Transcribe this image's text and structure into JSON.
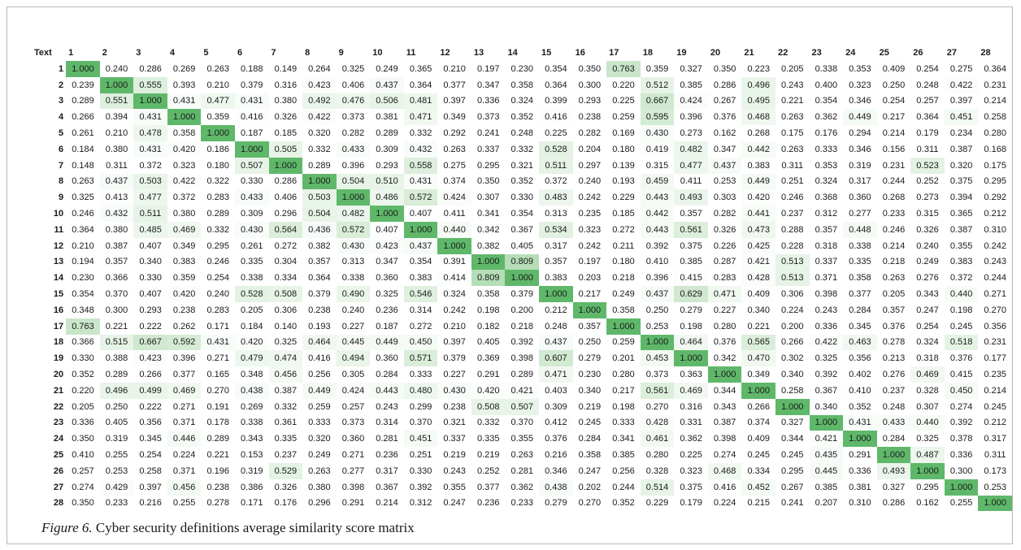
{
  "caption": {
    "label": "Figure 6.",
    "text": "Cyber security definitions average similarity score matrix"
  },
  "colors": {
    "scale_low": "#ffffff",
    "scale_mid": "#cfe8cf",
    "scale_high": "#5fb86a",
    "text": "#1a1a1a"
  },
  "chart_data": {
    "type": "heatmap",
    "corner_label": "Text",
    "x_labels": [
      "1",
      "2",
      "3",
      "4",
      "5",
      "6",
      "7",
      "8",
      "9",
      "10",
      "11",
      "12",
      "13",
      "14",
      "15",
      "16",
      "17",
      "18",
      "19",
      "20",
      "21",
      "22",
      "23",
      "24",
      "25",
      "26",
      "27",
      "28"
    ],
    "y_labels": [
      "1",
      "2",
      "3",
      "4",
      "5",
      "6",
      "7",
      "8",
      "9",
      "10",
      "11",
      "12",
      "13",
      "14",
      "15",
      "16",
      "17",
      "18",
      "19",
      "20",
      "21",
      "22",
      "23",
      "24",
      "25",
      "26",
      "27",
      "28"
    ],
    "cells": [
      [
        "1.000",
        "0.240",
        "0.286",
        "0.269",
        "0.263",
        "0.188",
        "0.149",
        "0.264",
        "0.325",
        "0.249",
        "0.365",
        "0.210",
        "0.197",
        "0.230",
        "0.354",
        "0.350",
        "0.763",
        "0.359",
        "0.327",
        "0.350",
        "0.223",
        "0.205",
        "0.338",
        "0.353",
        "0.409",
        "0.254",
        "0.275",
        "0.364"
      ],
      [
        "0.239",
        "1.000",
        "0.555",
        "0.393",
        "0.210",
        "0.379",
        "0.316",
        "0.423",
        "0.406",
        "0.437",
        "0.364",
        "0.377",
        "0.347",
        "0.358",
        "0.364",
        "0.300",
        "0.220",
        "0.512",
        "0.385",
        "0.286",
        "0.496",
        "0.243",
        "0.400",
        "0.323",
        "0.250",
        "0.248",
        "0.422",
        "0.231"
      ],
      [
        "0.289",
        "0.551",
        "1.000",
        "0.431",
        "0.477",
        "0.431",
        "0.380",
        "0.492",
        "0.476",
        "0.506",
        "0.481",
        "0.397",
        "0.336",
        "0.324",
        "0.399",
        "0.293",
        "0.225",
        "0.667",
        "0.424",
        "0.267",
        "0.495",
        "0.221",
        "0.354",
        "0.346",
        "0.254",
        "0.257",
        "0.397",
        "0.214"
      ],
      [
        "0.266",
        "0.394",
        "0.431",
        "1.000",
        "0.359",
        "0.416",
        "0.326",
        "0.422",
        "0.373",
        "0.381",
        "0.471",
        "0.349",
        "0.373",
        "0.352",
        "0.416",
        "0.238",
        "0.259",
        "0.595",
        "0.396",
        "0.376",
        "0.468",
        "0.263",
        "0.362",
        "0.449",
        "0.217",
        "0.364",
        "0.451",
        "0.258"
      ],
      [
        "0.261",
        "0.210",
        "0.478",
        "0.358",
        "1.000",
        "0.187",
        "0.185",
        "0.320",
        "0.282",
        "0.289",
        "0.332",
        "0.292",
        "0.241",
        "0.248",
        "0.225",
        "0.282",
        "0.169",
        "0.430",
        "0.273",
        "0.162",
        "0.268",
        "0.175",
        "0.176",
        "0.294",
        "0.214",
        "0.179",
        "0.234",
        "0.280"
      ],
      [
        "0.184",
        "0.380",
        "0.431",
        "0.420",
        "0.186",
        "1.000",
        "0.505",
        "0.332",
        "0.433",
        "0.309",
        "0.432",
        "0.263",
        "0.337",
        "0.332",
        "0.528",
        "0.204",
        "0.180",
        "0.419",
        "0.482",
        "0.347",
        "0.442",
        "0.263",
        "0.333",
        "0.346",
        "0.156",
        "0.311",
        "0.387",
        "0.168"
      ],
      [
        "0.148",
        "0.311",
        "0.372",
        "0.323",
        "0.180",
        "0.507",
        "1.000",
        "0.289",
        "0.396",
        "0.293",
        "0.558",
        "0.275",
        "0.295",
        "0.321",
        "0.511",
        "0.297",
        "0.139",
        "0.315",
        "0.477",
        "0.437",
        "0.383",
        "0.311",
        "0.353",
        "0.319",
        "0.231",
        "0.523",
        "0.320",
        "0.175"
      ],
      [
        "0.263",
        "0.437",
        "0.503",
        "0.422",
        "0.322",
        "0.330",
        "0.286",
        "1.000",
        "0.504",
        "0.510",
        "0.431",
        "0.374",
        "0.350",
        "0.352",
        "0.372",
        "0.240",
        "0.193",
        "0.459",
        "0.411",
        "0.253",
        "0.449",
        "0.251",
        "0.324",
        "0.317",
        "0.244",
        "0.252",
        "0.375",
        "0.295"
      ],
      [
        "0.325",
        "0.413",
        "0.477",
        "0.372",
        "0.283",
        "0.433",
        "0.406",
        "0.503",
        "1.000",
        "0.486",
        "0.572",
        "0.424",
        "0.307",
        "0.330",
        "0.483",
        "0.242",
        "0.229",
        "0.443",
        "0.493",
        "0.303",
        "0.420",
        "0.246",
        "0.368",
        "0.360",
        "0.268",
        "0.273",
        "0.394",
        "0.292"
      ],
      [
        "0.246",
        "0.432",
        "0.511",
        "0.380",
        "0.289",
        "0.309",
        "0.296",
        "0.504",
        "0.482",
        "1.000",
        "0.407",
        "0.411",
        "0.341",
        "0.354",
        "0.313",
        "0.235",
        "0.185",
        "0.442",
        "0.357",
        "0.282",
        "0.441",
        "0.237",
        "0.312",
        "0.277",
        "0.233",
        "0.315",
        "0.365",
        "0.212"
      ],
      [
        "0.364",
        "0.380",
        "0.485",
        "0.469",
        "0.332",
        "0.430",
        "0.564",
        "0.436",
        "0.572",
        "0.407",
        "1.000",
        "0.440",
        "0.342",
        "0.367",
        "0.534",
        "0.323",
        "0.272",
        "0.443",
        "0.561",
        "0.326",
        "0.473",
        "0.288",
        "0.357",
        "0.448",
        "0.246",
        "0.326",
        "0.387",
        "0.310"
      ],
      [
        "0.210",
        "0.387",
        "0.407",
        "0.349",
        "0.295",
        "0.261",
        "0.272",
        "0.382",
        "0.430",
        "0.423",
        "0.437",
        "1.000",
        "0.382",
        "0.405",
        "0.317",
        "0.242",
        "0.211",
        "0.392",
        "0.375",
        "0.226",
        "0.425",
        "0.228",
        "0.318",
        "0.338",
        "0.214",
        "0.240",
        "0.355",
        "0.242"
      ],
      [
        "0.194",
        "0.357",
        "0.340",
        "0.383",
        "0.246",
        "0.335",
        "0.304",
        "0.357",
        "0.313",
        "0.347",
        "0.354",
        "0.391",
        "1.000",
        "0.809",
        "0.357",
        "0.197",
        "0.180",
        "0.410",
        "0.385",
        "0.287",
        "0.421",
        "0.513",
        "0.337",
        "0.335",
        "0.218",
        "0.249",
        "0.383",
        "0.243"
      ],
      [
        "0.230",
        "0.366",
        "0.330",
        "0.359",
        "0.254",
        "0.338",
        "0.334",
        "0.364",
        "0.338",
        "0.360",
        "0.383",
        "0.414",
        "0.809",
        "1.000",
        "0.383",
        "0.203",
        "0.218",
        "0.396",
        "0.415",
        "0.283",
        "0.428",
        "0.513",
        "0.371",
        "0.358",
        "0.263",
        "0.276",
        "0.372",
        "0.244"
      ],
      [
        "0.354",
        "0.370",
        "0.407",
        "0.420",
        "0.240",
        "0.528",
        "0.508",
        "0.379",
        "0.490",
        "0.325",
        "0.546",
        "0.324",
        "0.358",
        "0.379",
        "1.000",
        "0.217",
        "0.249",
        "0.437",
        "0.629",
        "0.471",
        "0.409",
        "0.306",
        "0.398",
        "0.377",
        "0.205",
        "0.343",
        "0.440",
        "0.271"
      ],
      [
        "0.348",
        "0.300",
        "0.293",
        "0.238",
        "0.283",
        "0.205",
        "0.306",
        "0.238",
        "0.240",
        "0.236",
        "0.314",
        "0.242",
        "0.198",
        "0.200",
        "0.212",
        "1.000",
        "0.358",
        "0.250",
        "0.279",
        "0.227",
        "0.340",
        "0.224",
        "0.243",
        "0.284",
        "0.357",
        "0.247",
        "0.198",
        "0.270"
      ],
      [
        "0.763",
        "0.221",
        "0.222",
        "0.262",
        "0.171",
        "0.184",
        "0.140",
        "0.193",
        "0.227",
        "0.187",
        "0.272",
        "0.210",
        "0.182",
        "0.218",
        "0.248",
        "0.357",
        "1.000",
        "0.253",
        "0.198",
        "0.280",
        "0.221",
        "0.200",
        "0.336",
        "0.345",
        "0.376",
        "0.254",
        "0.245",
        "0.356"
      ],
      [
        "0.366",
        "0.515",
        "0.667",
        "0.592",
        "0.431",
        "0.420",
        "0.325",
        "0.464",
        "0.445",
        "0.449",
        "0.450",
        "0.397",
        "0.405",
        "0.392",
        "0.437",
        "0.250",
        "0.259",
        "1.000",
        "0.464",
        "0.376",
        "0.565",
        "0.266",
        "0.422",
        "0.463",
        "0.278",
        "0.324",
        "0.518",
        "0.231"
      ],
      [
        "0.330",
        "0.388",
        "0.423",
        "0.396",
        "0.271",
        "0.479",
        "0.474",
        "0.416",
        "0.494",
        "0.360",
        "0.571",
        "0.379",
        "0.369",
        "0.398",
        "0.607",
        "0.279",
        "0.201",
        "0.453",
        "1.000",
        "0.342",
        "0.470",
        "0.302",
        "0.325",
        "0.356",
        "0.213",
        "0.318",
        "0.376",
        "0.177"
      ],
      [
        "0.352",
        "0.289",
        "0.266",
        "0.377",
        "0.165",
        "0.348",
        "0.456",
        "0.256",
        "0.305",
        "0.284",
        "0.333",
        "0.227",
        "0.291",
        "0.289",
        "0.471",
        "0.230",
        "0.280",
        "0.373",
        "0.363",
        "1.000",
        "0.349",
        "0.340",
        "0.392",
        "0.402",
        "0.276",
        "0.469",
        "0.415",
        "0.235"
      ],
      [
        "0.220",
        "0.496",
        "0.499",
        "0.469",
        "0.270",
        "0.438",
        "0.387",
        "0.449",
        "0.424",
        "0.443",
        "0.480",
        "0.430",
        "0.420",
        "0.421",
        "0.403",
        "0.340",
        "0.217",
        "0.561",
        "0.469",
        "0.344",
        "1.000",
        "0.258",
        "0.367",
        "0.410",
        "0.237",
        "0.328",
        "0.450",
        "0.214"
      ],
      [
        "0.205",
        "0.250",
        "0.222",
        "0.271",
        "0.191",
        "0.269",
        "0.332",
        "0.259",
        "0.257",
        "0.243",
        "0.299",
        "0.238",
        "0.508",
        "0.507",
        "0.309",
        "0.219",
        "0.198",
        "0.270",
        "0.316",
        "0.343",
        "0.266",
        "1.000",
        "0.340",
        "0.352",
        "0.248",
        "0.307",
        "0.274",
        "0.245"
      ],
      [
        "0.336",
        "0.405",
        "0.356",
        "0.371",
        "0.178",
        "0.338",
        "0.361",
        "0.333",
        "0.373",
        "0.314",
        "0.370",
        "0.321",
        "0.332",
        "0.370",
        "0.412",
        "0.245",
        "0.333",
        "0.428",
        "0.331",
        "0.387",
        "0.374",
        "0.327",
        "1.000",
        "0.431",
        "0.433",
        "0.440",
        "0.392",
        "0.212"
      ],
      [
        "0.350",
        "0.319",
        "0.345",
        "0.446",
        "0.289",
        "0.343",
        "0.335",
        "0.320",
        "0.360",
        "0.281",
        "0.451",
        "0.337",
        "0.335",
        "0.355",
        "0.376",
        "0.284",
        "0.341",
        "0.461",
        "0.362",
        "0.398",
        "0.409",
        "0.344",
        "0.421",
        "1.000",
        "0.284",
        "0.325",
        "0.378",
        "0.317"
      ],
      [
        "0.410",
        "0.255",
        "0.254",
        "0.224",
        "0.221",
        "0.153",
        "0.237",
        "0.249",
        "0.271",
        "0.236",
        "0.251",
        "0.219",
        "0.219",
        "0.263",
        "0.216",
        "0.358",
        "0.385",
        "0.280",
        "0.225",
        "0.274",
        "0.245",
        "0.245",
        "0.435",
        "0.291",
        "1.000",
        "0.487",
        "0.336",
        "0.311"
      ],
      [
        "0.257",
        "0.253",
        "0.258",
        "0.371",
        "0.196",
        "0.319",
        "0.529",
        "0.263",
        "0.277",
        "0.317",
        "0.330",
        "0.243",
        "0.252",
        "0.281",
        "0.346",
        "0.247",
        "0.256",
        "0.328",
        "0.323",
        "0.468",
        "0.334",
        "0.295",
        "0.445",
        "0.336",
        "0.493",
        "1.000",
        "0.300",
        "0.173"
      ],
      [
        "0.274",
        "0.429",
        "0.397",
        "0.456",
        "0.238",
        "0.386",
        "0.326",
        "0.380",
        "0.398",
        "0.367",
        "0.392",
        "0.355",
        "0.377",
        "0.362",
        "0.438",
        "0.202",
        "0.244",
        "0.514",
        "0.375",
        "0.416",
        "0.452",
        "0.267",
        "0.385",
        "0.381",
        "0.327",
        "0.295",
        "1.000",
        "0.253"
      ],
      [
        "0.350",
        "0.233",
        "0.216",
        "0.255",
        "0.278",
        "0.171",
        "0.176",
        "0.296",
        "0.291",
        "0.214",
        "0.312",
        "0.247",
        "0.236",
        "0.233",
        "0.279",
        "0.270",
        "0.352",
        "0.229",
        "0.179",
        "0.224",
        "0.215",
        "0.241",
        "0.207",
        "0.310",
        "0.286",
        "0.162",
        "0.255",
        "1.000"
      ]
    ]
  }
}
